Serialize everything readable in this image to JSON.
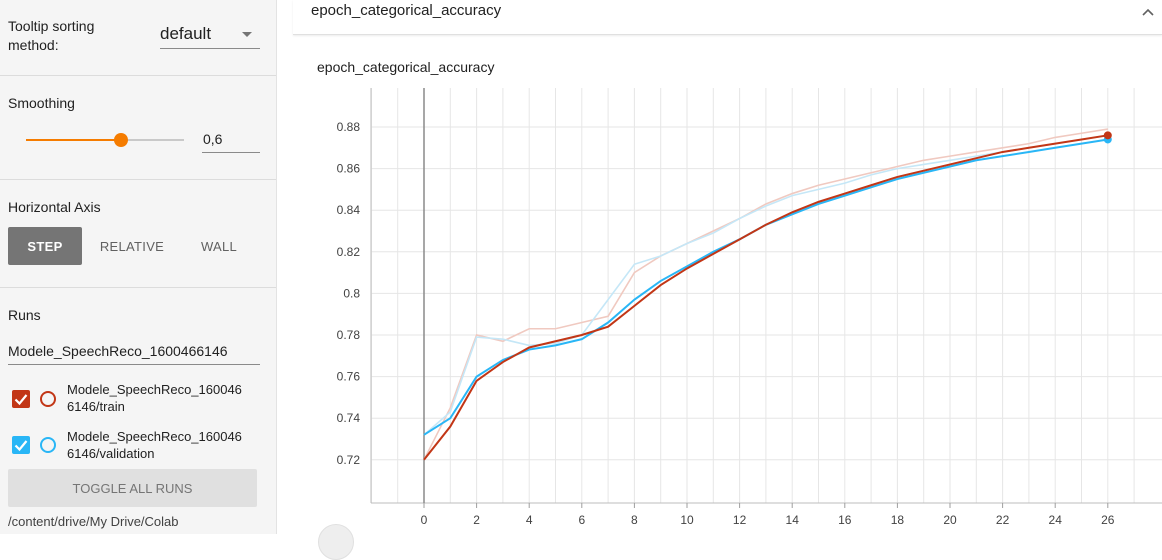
{
  "sidebar": {
    "tooltip_sorting": {
      "label": "Tooltip sorting method:",
      "value": "default"
    },
    "smoothing": {
      "label": "Smoothing",
      "value": "0,6",
      "level": 0.6
    },
    "horizontal_axis": {
      "label": "Horizontal Axis",
      "options": [
        "STEP",
        "RELATIVE",
        "WALL"
      ],
      "selected": "STEP"
    },
    "runs": {
      "label": "Runs",
      "filter_value": "Modele_SpeechReco_1600466146",
      "items": [
        {
          "line1": "Modele_SpeechReco_160046",
          "line2": "6146/train",
          "checked": true,
          "color": "#c23616"
        },
        {
          "line1": "Modele_SpeechReco_160046",
          "line2": "6146/validation",
          "checked": true,
          "color": "#29b6f6"
        }
      ],
      "toggle_label": "TOGGLE ALL RUNS",
      "path": "/content/drive/My Drive/Colab"
    }
  },
  "card": {
    "title": "epoch_categorical_accuracy",
    "chart_title": "epoch_categorical_accuracy"
  },
  "chart_data": {
    "type": "line",
    "title": "epoch_categorical_accuracy",
    "xlabel": "",
    "ylabel": "",
    "xlim": [
      -2,
      27
    ],
    "ylim": [
      0.7,
      0.89
    ],
    "x_ticks": [
      0,
      2,
      4,
      6,
      8,
      10,
      12,
      14,
      16,
      18,
      20,
      22,
      24,
      26
    ],
    "y_ticks": [
      0.72,
      0.74,
      0.76,
      0.78,
      0.8,
      0.82,
      0.84,
      0.86,
      0.88
    ],
    "y_tick_labels": [
      "0.72",
      "0.74",
      "0.76",
      "0.78",
      "0.8",
      "0.82",
      "0.84",
      "0.86",
      "0.88"
    ],
    "grid": true,
    "smoothing": 0.6,
    "series": [
      {
        "name": "Modele_SpeechReco_1600466146/train",
        "color": "#c23616",
        "raw_color": "#f0c9c0",
        "x": [
          0,
          1,
          2,
          3,
          4,
          5,
          6,
          7,
          8,
          9,
          10,
          11,
          12,
          13,
          14,
          15,
          16,
          17,
          18,
          19,
          20,
          21,
          22,
          23,
          24,
          25,
          26
        ],
        "raw": [
          0.72,
          0.745,
          0.78,
          0.777,
          0.783,
          0.783,
          0.786,
          0.789,
          0.81,
          0.818,
          0.824,
          0.83,
          0.836,
          0.843,
          0.848,
          0.852,
          0.855,
          0.858,
          0.861,
          0.864,
          0.866,
          0.868,
          0.87,
          0.872,
          0.875,
          0.877,
          0.879
        ],
        "smoothed": [
          0.72,
          0.736,
          0.758,
          0.767,
          0.774,
          0.777,
          0.78,
          0.784,
          0.794,
          0.804,
          0.812,
          0.819,
          0.826,
          0.833,
          0.839,
          0.844,
          0.848,
          0.852,
          0.856,
          0.859,
          0.862,
          0.865,
          0.868,
          0.87,
          0.872,
          0.874,
          0.876
        ]
      },
      {
        "name": "Modele_SpeechReco_1600466146/validation",
        "color": "#29b6f6",
        "raw_color": "#c5e7f7",
        "x": [
          0,
          1,
          2,
          3,
          4,
          5,
          6,
          7,
          8,
          9,
          10,
          11,
          12,
          13,
          14,
          15,
          16,
          17,
          18,
          19,
          20,
          21,
          22,
          23,
          24,
          25,
          26
        ],
        "raw": [
          0.732,
          0.743,
          0.779,
          0.778,
          0.775,
          0.776,
          0.78,
          0.797,
          0.814,
          0.818,
          0.824,
          0.829,
          0.836,
          0.842,
          0.847,
          0.85,
          0.853,
          0.857,
          0.86,
          0.862,
          0.864,
          0.866,
          0.868,
          0.87,
          0.872,
          0.874,
          0.876
        ],
        "smoothed": [
          0.732,
          0.74,
          0.76,
          0.768,
          0.773,
          0.775,
          0.778,
          0.786,
          0.797,
          0.806,
          0.813,
          0.82,
          0.826,
          0.833,
          0.838,
          0.843,
          0.847,
          0.851,
          0.855,
          0.858,
          0.861,
          0.864,
          0.866,
          0.868,
          0.87,
          0.872,
          0.874
        ]
      }
    ]
  }
}
